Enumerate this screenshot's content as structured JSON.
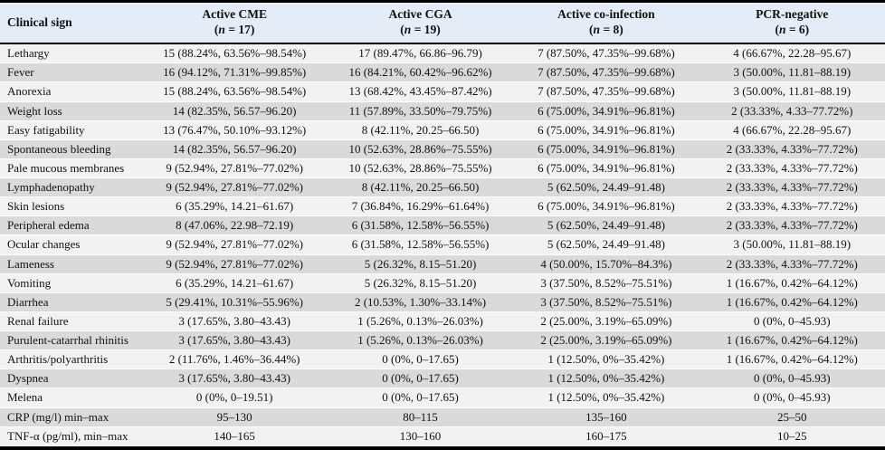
{
  "colors": {
    "header_bg": "#e3ecf7",
    "row_light": "#f3f2f2",
    "row_dark": "#dadada",
    "border": "#000000",
    "text": "#111111"
  },
  "table": {
    "columns": [
      {
        "id": "clinical-sign",
        "label": "Clinical sign",
        "n": null
      },
      {
        "id": "active-cme",
        "label": "Active CME",
        "n": "17"
      },
      {
        "id": "active-cga",
        "label": "Active CGA",
        "n": "19"
      },
      {
        "id": "active-co-infection",
        "label": "Active co-infection",
        "n": "8"
      },
      {
        "id": "pcr-negative",
        "label": "PCR-negative",
        "n": "6"
      }
    ],
    "rows": [
      {
        "sign": "Lethargy",
        "values": [
          "15 (88.24%, 63.56%–98.54%)",
          "17 (89.47%, 66.86–96.79)",
          "7 (87.50%, 47.35%–99.68%)",
          "4 (66.67%, 22.28–95.67)"
        ]
      },
      {
        "sign": "Fever",
        "values": [
          "16 (94.12%, 71.31%–99.85%)",
          "16 (84.21%, 60.42%–96.62%)",
          "7 (87.50%, 47.35%–99.68%)",
          "3 (50.00%, 11.81–88.19)"
        ]
      },
      {
        "sign": "Anorexia",
        "values": [
          "15 (88.24%, 63.56%–98.54%)",
          "13 (68.42%, 43.45%–87.42%)",
          "7 (87.50%, 47.35%–99.68%)",
          "3 (50.00%, 11.81–88.19)"
        ]
      },
      {
        "sign": "Weight loss",
        "values": [
          "14 (82.35%, 56.57–96.20)",
          "11 (57.89%, 33.50%–79.75%)",
          "6 (75.00%, 34.91%–96.81%)",
          "2 (33.33%, 4.33–77.72%)"
        ]
      },
      {
        "sign": "Easy fatigability",
        "values": [
          "13 (76.47%, 50.10%–93.12%)",
          "8 (42.11%, 20.25–66.50)",
          "6 (75.00%, 34.91%–96.81%)",
          "4 (66.67%, 22.28–95.67)"
        ]
      },
      {
        "sign": "Spontaneous bleeding",
        "values": [
          "14 (82.35%, 56.57–96.20)",
          "10 (52.63%, 28.86%–75.55%)",
          "6 (75.00%, 34.91%–96.81%)",
          "2 (33.33%, 4.33%–77.72%)"
        ]
      },
      {
        "sign": "Pale mucous membranes",
        "values": [
          "9 (52.94%, 27.81%–77.02%)",
          "10 (52.63%, 28.86%–75.55%)",
          "6 (75.00%, 34.91%–96.81%)",
          "2 (33.33%, 4.33%–77.72%)"
        ]
      },
      {
        "sign": "Lymphadenopathy",
        "values": [
          "9 (52.94%, 27.81%–77.02%)",
          "8 (42.11%, 20.25–66.50)",
          "5 (62.50%, 24.49–91.48)",
          "2 (33.33%, 4.33%–77.72%)"
        ]
      },
      {
        "sign": "Skin lesions",
        "values": [
          "6 (35.29%, 14.21–61.67)",
          "7 (36.84%, 16.29%–61.64%)",
          "6 (75.00%, 34.91%–96.81%)",
          "2 (33.33%, 4.33%–77.72%)"
        ]
      },
      {
        "sign": "Peripheral edema",
        "values": [
          "8 (47.06%, 22.98–72.19)",
          "6 (31.58%, 12.58%–56.55%)",
          "5 (62.50%, 24.49–91.48)",
          "2 (33.33%, 4.33%–77.72%)"
        ]
      },
      {
        "sign": "Ocular changes",
        "values": [
          "9 (52.94%, 27.81%–77.02%)",
          "6 (31.58%, 12.58%–56.55%)",
          "5 (62.50%, 24.49–91.48)",
          "3 (50.00%, 11.81–88.19)"
        ]
      },
      {
        "sign": "Lameness",
        "values": [
          "9 (52.94%, 27.81%–77.02%)",
          "5 (26.32%, 8.15–51.20)",
          "4 (50.00%, 15.70%–84.3%)",
          "2 (33.33%, 4.33%–77.72%)"
        ]
      },
      {
        "sign": "Vomiting",
        "values": [
          "6 (35.29%, 14.21–61.67)",
          "5 (26.32%, 8.15–51.20)",
          "3 (37.50%, 8.52%–75.51%)",
          "1 (16.67%, 0.42%–64.12%)"
        ]
      },
      {
        "sign": "Diarrhea",
        "values": [
          "5 (29.41%, 10.31%–55.96%)",
          "2 (10.53%, 1.30%–33.14%)",
          "3 (37.50%, 8.52%–75.51%)",
          "1 (16.67%, 0.42%–64.12%)"
        ]
      },
      {
        "sign": "Renal failure",
        "values": [
          "3 (17.65%, 3.80–43.43)",
          "1 (5.26%, 0.13%–26.03%)",
          "2 (25.00%, 3.19%–65.09%)",
          "0 (0%, 0–45.93)"
        ]
      },
      {
        "sign": "Purulent-catarrhal rhinitis",
        "values": [
          "3 (17.65%, 3.80–43.43)",
          "1 (5.26%, 0.13%–26.03%)",
          "2 (25.00%, 3.19%–65.09%)",
          "1 (16.67%, 0.42%–64.12%)"
        ]
      },
      {
        "sign": "Arthritis/polyarthritis",
        "values": [
          "2 (11.76%, 1.46%–36.44%)",
          "0 (0%, 0–17.65)",
          "1 (12.50%, 0%–35.42%)",
          "1 (16.67%, 0.42%–64.12%)"
        ]
      },
      {
        "sign": "Dyspnea",
        "values": [
          "3 (17.65%, 3.80–43.43)",
          "0 (0%, 0–17.65)",
          "1 (12.50%, 0%–35.42%)",
          "0 (0%, 0–45.93)"
        ]
      },
      {
        "sign": "Melena",
        "values": [
          "0 (0%, 0–19.51)",
          "0 (0%, 0–17.65)",
          "1 (12.50%, 0%–35.42%)",
          "0 (0%, 0–45.93)"
        ]
      },
      {
        "sign": "CRP (mg/l) min–max",
        "values": [
          "95–130",
          "80–115",
          "135–160",
          "25–50"
        ]
      },
      {
        "sign": "TNF-α (pg/ml), min–max",
        "values": [
          "140–165",
          "130–160",
          "160–175",
          "10–25"
        ]
      }
    ]
  }
}
